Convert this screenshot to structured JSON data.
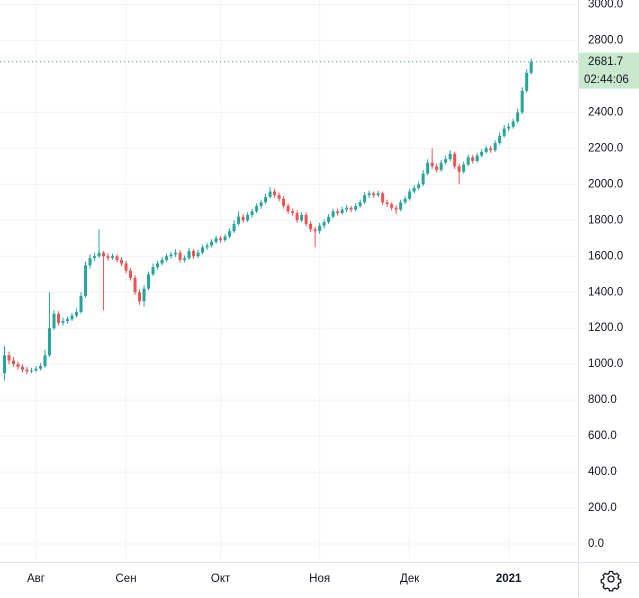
{
  "chart_data": {
    "type": "candlestick",
    "up_color": "#26a69a",
    "down_color": "#ef5350",
    "grid": true,
    "countdown": "02:44:06",
    "ylim": [
      -100,
      3025
    ],
    "yticks": [
      {
        "value": 0,
        "label": "0.0"
      },
      {
        "value": 200,
        "label": "200.0"
      },
      {
        "value": 400,
        "label": "400.0"
      },
      {
        "value": 600,
        "label": "600.0"
      },
      {
        "value": 800,
        "label": "800.0"
      },
      {
        "value": 1000,
        "label": "1000.0"
      },
      {
        "value": 1200,
        "label": "1200.0"
      },
      {
        "value": 1400,
        "label": "1400.0"
      },
      {
        "value": 1600,
        "label": "1600.0"
      },
      {
        "value": 1800,
        "label": "1800.0"
      },
      {
        "value": 2000,
        "label": "2000.0"
      },
      {
        "value": 2200,
        "label": "2200.0"
      },
      {
        "value": 2400,
        "label": "2400.0"
      },
      {
        "value": 2800,
        "label": "2800.0"
      },
      {
        "value": 3000,
        "label": "3000.0"
      }
    ],
    "xlim": [
      -1,
      127.4
    ],
    "xticks": [
      {
        "value": 7,
        "label": "Авг"
      },
      {
        "value": 27,
        "label": "Сен"
      },
      {
        "value": 48,
        "label": "Окт"
      },
      {
        "value": 70,
        "label": "Ноя"
      },
      {
        "value": 90,
        "label": "Дек"
      },
      {
        "value": 112,
        "label": "2021"
      }
    ],
    "open": [
      950,
      1050,
      1020,
      1000,
      985,
      970,
      960,
      965,
      975,
      990,
      1050,
      1200,
      1280,
      1230,
      1240,
      1250,
      1270,
      1290,
      1380,
      1550,
      1590,
      1600,
      1620,
      1600,
      1590,
      1600,
      1580,
      1560,
      1520,
      1480,
      1400,
      1350,
      1420,
      1500,
      1540,
      1560,
      1580,
      1600,
      1610,
      1620,
      1580,
      1590,
      1630,
      1600,
      1620,
      1650,
      1660,
      1680,
      1700,
      1690,
      1710,
      1740,
      1780,
      1820,
      1800,
      1830,
      1850,
      1880,
      1900,
      1930,
      1960,
      1940,
      1920,
      1880,
      1850,
      1840,
      1800,
      1830,
      1780,
      1750,
      1740,
      1770,
      1790,
      1820,
      1850,
      1840,
      1860,
      1870,
      1860,
      1880,
      1900,
      1940,
      1950,
      1940,
      1950,
      1900,
      1890,
      1870,
      1860,
      1900,
      1920,
      1960,
      1980,
      2000,
      2060,
      2120,
      2100,
      2080,
      2120,
      2140,
      2170,
      2100,
      2070,
      2110,
      2150,
      2130,
      2160,
      2180,
      2200,
      2190,
      2230,
      2270,
      2310,
      2320,
      2350,
      2400,
      2520,
      2620
    ],
    "high": [
      1100,
      1070,
      1040,
      1015,
      1000,
      985,
      980,
      990,
      1005,
      1080,
      1400,
      1300,
      1295,
      1260,
      1265,
      1285,
      1310,
      1400,
      1570,
      1610,
      1620,
      1750,
      1630,
      1615,
      1615,
      1610,
      1595,
      1575,
      1535,
      1495,
      1415,
      1440,
      1515,
      1560,
      1575,
      1595,
      1615,
      1625,
      1640,
      1635,
      1605,
      1645,
      1640,
      1635,
      1665,
      1675,
      1695,
      1715,
      1715,
      1725,
      1755,
      1800,
      1850,
      1835,
      1845,
      1865,
      1895,
      1915,
      1950,
      1985,
      1975,
      1955,
      1935,
      1895,
      1865,
      1855,
      1845,
      1845,
      1795,
      1765,
      1785,
      1805,
      1835,
      1865,
      1865,
      1875,
      1885,
      1880,
      1895,
      1915,
      1955,
      1965,
      1960,
      1965,
      1960,
      1915,
      1900,
      1885,
      1915,
      1935,
      1975,
      1995,
      2015,
      2080,
      2140,
      2200,
      2115,
      2135,
      2160,
      2190,
      2180,
      2115,
      2125,
      2165,
      2165,
      2175,
      2195,
      2215,
      2215,
      2245,
      2290,
      2330,
      2340,
      2365,
      2420,
      2540,
      2640,
      2700
    ],
    "low": [
      910,
      1000,
      985,
      970,
      955,
      945,
      950,
      955,
      965,
      980,
      1040,
      1190,
      1215,
      1215,
      1225,
      1240,
      1260,
      1280,
      1370,
      1530,
      1575,
      1590,
      1300,
      1575,
      1580,
      1565,
      1545,
      1505,
      1465,
      1385,
      1330,
      1320,
      1410,
      1490,
      1525,
      1550,
      1570,
      1585,
      1595,
      1565,
      1565,
      1580,
      1585,
      1590,
      1610,
      1635,
      1650,
      1670,
      1675,
      1680,
      1700,
      1730,
      1770,
      1785,
      1790,
      1815,
      1840,
      1865,
      1890,
      1920,
      1925,
      1905,
      1865,
      1835,
      1825,
      1785,
      1790,
      1765,
      1735,
      1650,
      1725,
      1755,
      1780,
      1810,
      1825,
      1830,
      1845,
      1845,
      1850,
      1870,
      1890,
      1925,
      1925,
      1930,
      1885,
      1875,
      1855,
      1835,
      1850,
      1890,
      1910,
      1950,
      1970,
      1990,
      2050,
      2085,
      2065,
      2070,
      2110,
      2130,
      2085,
      2000,
      2060,
      2100,
      2115,
      2120,
      2150,
      2170,
      2175,
      2180,
      2220,
      2260,
      2295,
      2310,
      2340,
      2390,
      2510,
      2610
    ],
    "close": [
      1050,
      1020,
      1000,
      985,
      970,
      960,
      965,
      975,
      990,
      1050,
      1200,
      1280,
      1230,
      1240,
      1250,
      1270,
      1290,
      1380,
      1550,
      1590,
      1600,
      1620,
      1600,
      1590,
      1600,
      1580,
      1560,
      1520,
      1480,
      1400,
      1350,
      1420,
      1500,
      1540,
      1560,
      1580,
      1600,
      1610,
      1620,
      1580,
      1590,
      1630,
      1600,
      1620,
      1650,
      1660,
      1680,
      1700,
      1690,
      1710,
      1740,
      1780,
      1820,
      1800,
      1830,
      1850,
      1880,
      1900,
      1930,
      1960,
      1940,
      1920,
      1880,
      1850,
      1840,
      1800,
      1830,
      1780,
      1750,
      1740,
      1770,
      1790,
      1820,
      1850,
      1840,
      1860,
      1870,
      1860,
      1880,
      1900,
      1940,
      1950,
      1940,
      1950,
      1900,
      1890,
      1870,
      1860,
      1900,
      1920,
      1960,
      1980,
      2000,
      2060,
      2120,
      2100,
      2080,
      2120,
      2140,
      2170,
      2100,
      2070,
      2110,
      2150,
      2130,
      2160,
      2180,
      2200,
      2190,
      2230,
      2270,
      2310,
      2320,
      2350,
      2400,
      2520,
      2620,
      2681.7
    ]
  }
}
